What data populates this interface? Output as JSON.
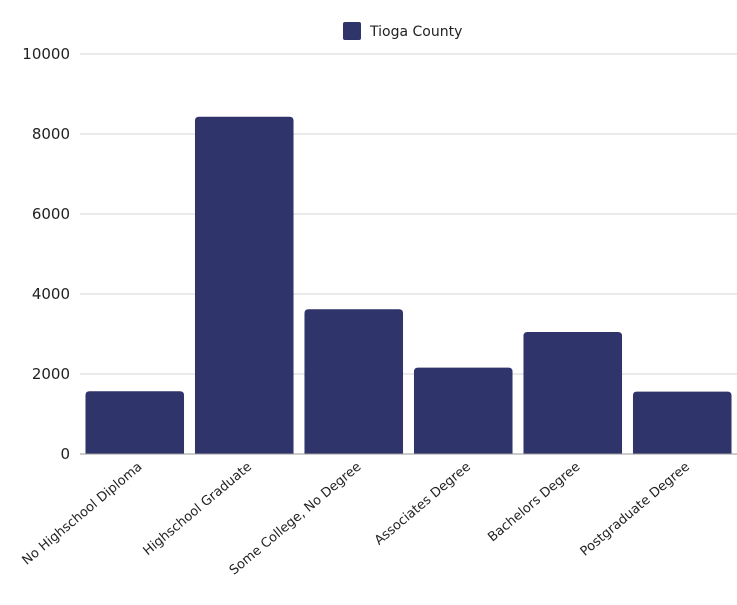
{
  "chart_data": {
    "type": "bar",
    "title": "",
    "xlabel": "",
    "ylabel": "",
    "categories": [
      "No Highschool Diploma",
      "Highschool Graduate",
      "Some College, No Degree",
      "Associates Degree",
      "Bachelors Degree",
      "Postgraduate Degree"
    ],
    "series": [
      {
        "name": "Tioga County",
        "values": [
          1570,
          8430,
          3620,
          2160,
          3050,
          1560
        ]
      }
    ],
    "ylim": [
      0,
      10000
    ],
    "yticks": [
      0,
      2000,
      4000,
      6000,
      8000,
      10000
    ],
    "grid": true,
    "legend": "top-center",
    "colors": {
      "bar": "#2f346a",
      "grid": "#d4d4d4",
      "axis": "#9a9a9a"
    }
  }
}
